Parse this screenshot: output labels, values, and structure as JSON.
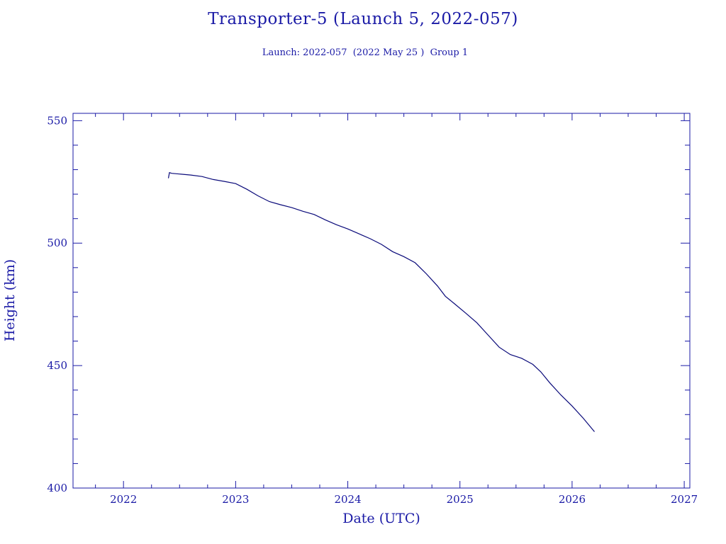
{
  "chart_data": {
    "type": "line",
    "title": "Transporter-5 (Launch 5, 2022-057)",
    "subtitle": "Launch: 2022-057  (2022 May 25 )  Group 1",
    "xlabel": "Date (UTC)",
    "ylabel": "Height (km)",
    "xlim": [
      2021.55,
      2027.05
    ],
    "ylim": [
      400,
      553
    ],
    "x_major_ticks": [
      2022,
      2023,
      2024,
      2025,
      2026,
      2027
    ],
    "y_major_ticks": [
      400,
      450,
      500,
      550
    ],
    "x_minor_step": 0.25,
    "y_minor_step": 10,
    "grid": false,
    "color": "#0a0a7a",
    "series": [
      {
        "x": [
          2022.4,
          2022.41,
          2022.43,
          2022.5,
          2022.6,
          2022.7,
          2022.8,
          2022.9,
          2023.0,
          2023.1,
          2023.2,
          2023.3,
          2023.4,
          2023.5,
          2023.6,
          2023.7,
          2023.8,
          2023.9,
          2024.0,
          2024.1,
          2024.2,
          2024.3,
          2024.4,
          2024.5,
          2024.6,
          2024.7,
          2024.8,
          2024.87,
          2024.95,
          2025.05,
          2025.15,
          2025.25,
          2025.35,
          2025.45,
          2025.55,
          2025.65,
          2025.72,
          2025.8,
          2025.9,
          2026.0,
          2026.1,
          2026.2
        ],
        "y": [
          526.5,
          528.8,
          528.5,
          528.2,
          527.8,
          527.2,
          526.0,
          525.2,
          524.3,
          522.0,
          519.3,
          517.0,
          515.7,
          514.5,
          513.0,
          511.7,
          509.5,
          507.5,
          505.8,
          503.8,
          501.8,
          499.5,
          496.5,
          494.5,
          492.0,
          487.5,
          482.5,
          478.3,
          475.3,
          471.5,
          467.5,
          462.5,
          457.5,
          454.5,
          453.0,
          450.5,
          447.5,
          443.0,
          438.0,
          433.5,
          428.5,
          423.0
        ]
      }
    ]
  }
}
